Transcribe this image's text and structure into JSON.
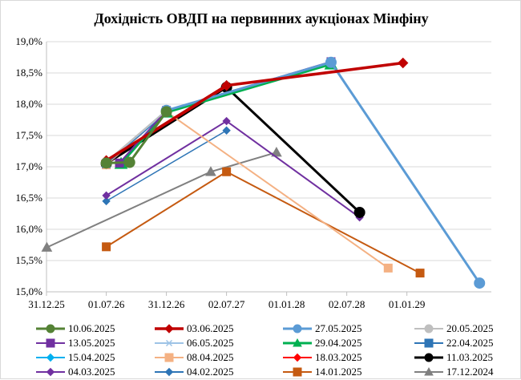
{
  "chart_data": {
    "type": "line",
    "title": "Дохідність ОВДП на первинних аукціонах Мінфіну",
    "xlabel": "",
    "ylabel": "",
    "x_axis": {
      "type": "date",
      "range": [
        "2025-12-31",
        "2029-09-15"
      ],
      "tick_dates": [
        "2025-12-31",
        "2026-07-01",
        "2026-12-31",
        "2027-07-02",
        "2028-01-01",
        "2028-07-02",
        "2029-01-01"
      ],
      "tick_labels": [
        "31.12.25",
        "01.07.26",
        "31.12.26",
        "02.07.27",
        "01.01.28",
        "02.07.28",
        "01.01.29"
      ]
    },
    "y_axis": {
      "range": [
        15.0,
        19.0
      ],
      "ticks": [
        15.0,
        15.5,
        16.0,
        16.5,
        17.0,
        17.5,
        18.0,
        18.5,
        19.0
      ],
      "tick_labels": [
        "15,0%",
        "15,5%",
        "16,0%",
        "16,5%",
        "17,0%",
        "17,5%",
        "18,0%",
        "18,5%",
        "19,0%"
      ]
    },
    "grid": "horizontal",
    "legend_position": "bottom",
    "series": [
      {
        "name": "10.06.2025",
        "color": "#548235",
        "marker": "circle",
        "width": 3,
        "points": [
          [
            "2026-07-01",
            17.06
          ],
          [
            "2026-09-10",
            17.07
          ],
          [
            "2026-12-31",
            17.88
          ]
        ]
      },
      {
        "name": "03.06.2025",
        "color": "#c00000",
        "marker": "diamond",
        "width": 3.5,
        "points": [
          [
            "2026-07-01",
            17.1
          ],
          [
            "2027-07-02",
            18.3
          ],
          [
            "2028-12-20",
            18.66
          ]
        ]
      },
      {
        "name": "27.05.2025",
        "color": "#5b9bd5",
        "marker": "circle",
        "width": 3,
        "points": [
          [
            "2026-12-31",
            17.9
          ],
          [
            "2028-05-15",
            18.67
          ],
          [
            "2029-08-10",
            15.14
          ]
        ]
      },
      {
        "name": "20.05.2025",
        "color": "#bfbfbf",
        "marker": "circle",
        "width": 2,
        "points": [
          [
            "2026-07-01",
            17.08
          ],
          [
            "2026-12-31",
            17.9
          ]
        ]
      },
      {
        "name": "13.05.2025",
        "color": "#7030a0",
        "marker": "square",
        "width": 2,
        "points": [
          [
            "2026-08-10",
            17.06
          ],
          [
            "2026-12-31",
            17.9
          ],
          [
            "2028-05-15",
            18.68
          ]
        ]
      },
      {
        "name": "06.05.2025",
        "color": "#9dc3e6",
        "marker": "x",
        "width": 2,
        "points": [
          [
            "2026-07-01",
            17.07
          ],
          [
            "2026-12-31",
            17.89
          ]
        ]
      },
      {
        "name": "29.04.2025",
        "color": "#00b050",
        "marker": "triangle",
        "width": 3,
        "points": [
          [
            "2026-08-15",
            17.05
          ],
          [
            "2026-12-31",
            17.87
          ],
          [
            "2028-05-15",
            18.64
          ]
        ]
      },
      {
        "name": "22.04.2025",
        "color": "#2e75b6",
        "marker": "square",
        "width": 2,
        "points": [
          [
            "2026-07-01",
            17.05
          ],
          [
            "2026-12-31",
            17.87
          ]
        ]
      },
      {
        "name": "15.04.2025",
        "color": "#00b0f0",
        "marker": "diamond",
        "width": 2,
        "points": [
          [
            "2026-07-01",
            17.07
          ],
          [
            "2026-12-31",
            17.9
          ],
          [
            "2028-05-15",
            18.66
          ]
        ]
      },
      {
        "name": "08.04.2025",
        "color": "#f4b183",
        "marker": "square",
        "width": 2,
        "points": [
          [
            "2026-07-01",
            17.03
          ],
          [
            "2026-12-31",
            17.88
          ],
          [
            "2028-11-05",
            15.38
          ]
        ]
      },
      {
        "name": "18.03.2025",
        "color": "#ff0000",
        "marker": "diamond",
        "width": 2,
        "points": [
          [
            "2026-07-01",
            17.09
          ],
          [
            "2027-07-02",
            18.28
          ]
        ]
      },
      {
        "name": "11.03.2025",
        "color": "#000000",
        "marker": "circle",
        "width": 3,
        "points": [
          [
            "2026-07-01",
            17.05
          ],
          [
            "2027-07-02",
            18.27
          ],
          [
            "2028-08-10",
            16.27
          ]
        ]
      },
      {
        "name": "04.03.2025",
        "color": "#7030a0",
        "marker": "diamond",
        "width": 2,
        "points": [
          [
            "2026-07-01",
            16.54
          ],
          [
            "2027-07-02",
            17.73
          ],
          [
            "2028-08-10",
            16.19
          ]
        ]
      },
      {
        "name": "04.02.2025",
        "color": "#2e75b6",
        "marker": "diamond",
        "width": 1.5,
        "points": [
          [
            "2026-07-01",
            16.45
          ],
          [
            "2027-07-02",
            17.58
          ]
        ]
      },
      {
        "name": "14.01.2025",
        "color": "#c55a11",
        "marker": "square",
        "width": 2,
        "points": [
          [
            "2026-07-01",
            15.72
          ],
          [
            "2027-07-02",
            16.92
          ],
          [
            "2029-02-10",
            15.3
          ]
        ]
      },
      {
        "name": "17.12.2024",
        "color": "#808080",
        "marker": "triangle",
        "width": 2,
        "points": [
          [
            "2026-01-01",
            15.71
          ],
          [
            "2027-05-15",
            16.92
          ],
          [
            "2027-12-01",
            17.23
          ]
        ]
      }
    ]
  }
}
